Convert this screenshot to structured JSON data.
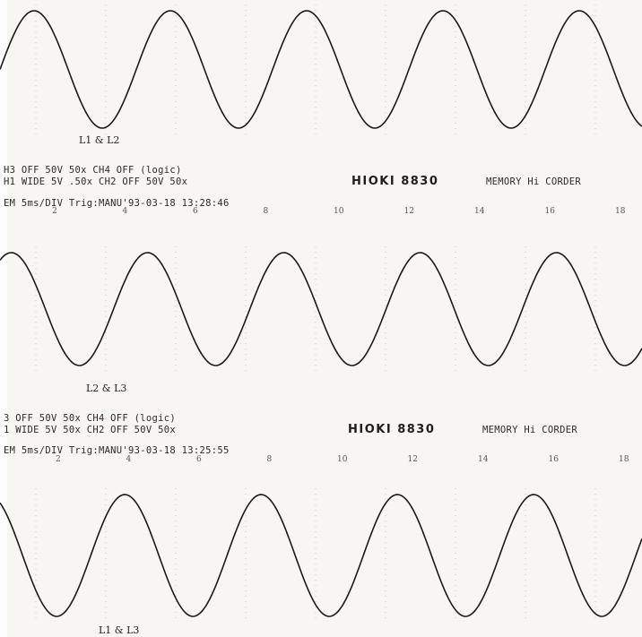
{
  "traces": [
    {
      "label": "L1 & L2",
      "phase": 0
    },
    {
      "label": "L2 & L3",
      "phase": 1.05
    },
    {
      "label": "L1 & L3",
      "phase": 2.1
    }
  ],
  "headers": [
    {
      "line1_a": "H3 OFF  50V    50x  CH4 OFF (logic)",
      "line2_a": "H1 WIDE   5V  .50x  CH2 OFF   50V   50x",
      "brand": "HIOKI 8830",
      "model": "MEMORY Hi CORDER",
      "line3": "EM     5ms/DIV Trig:MANU'93-03-18 13:28:46"
    },
    {
      "line1_a": "3 OFF   50V    50x  CH4 OFF (logic)",
      "line2_a": "1 WIDE   5V    50x  CH2 OFF   50V    50x",
      "brand": "HIOKI 8830",
      "model": "MEMORY Hi CORDER",
      "line3": "EM    5ms/DIV Trig:MANU'93-03-18 13:25:55"
    }
  ],
  "tick_labels": [
    "2",
    "4",
    "6",
    "8",
    "10",
    "12",
    "14",
    "16",
    "18"
  ],
  "colors": {
    "paper": "#f7f6f2",
    "trace": "#1a1a1a",
    "grid": "#c9c9c4"
  }
}
